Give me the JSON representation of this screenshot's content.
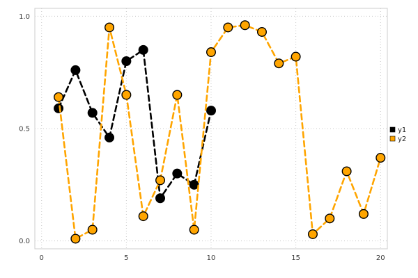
{
  "chart_data": {
    "type": "line",
    "title": "",
    "xlabel": "",
    "ylabel": "",
    "xlim": [
      0,
      20
    ],
    "ylim": [
      0,
      1.0
    ],
    "xticks": [
      "0",
      "5",
      "10",
      "15",
      "20"
    ],
    "xtick_values": [
      0,
      5,
      10,
      15,
      20
    ],
    "yticks": [
      "0.0",
      "0.5",
      "1.0"
    ],
    "ytick_values": [
      0.0,
      0.5,
      1.0
    ],
    "grid": true,
    "grid_style": "dotted",
    "legend_position": "right-outside",
    "series": [
      {
        "name": "y1",
        "color": "#000000",
        "marker": "circle",
        "marker_edge": "#000000",
        "linestyle": "dashed",
        "x": [
          1,
          2,
          3,
          4,
          5,
          6,
          7,
          8,
          9,
          10
        ],
        "y": [
          0.59,
          0.76,
          0.57,
          0.46,
          0.8,
          0.85,
          0.19,
          0.3,
          0.25,
          0.58
        ]
      },
      {
        "name": "y2",
        "color": "#FFA500",
        "marker": "circle",
        "marker_edge": "#000000",
        "linestyle": "dashed",
        "x": [
          1,
          2,
          3,
          4,
          5,
          6,
          7,
          8,
          9,
          10,
          11,
          12,
          13,
          14,
          15,
          16,
          17,
          18,
          19,
          20
        ],
        "y": [
          0.64,
          0.01,
          0.05,
          0.95,
          0.65,
          0.11,
          0.27,
          0.65,
          0.05,
          0.84,
          0.95,
          0.96,
          0.93,
          0.79,
          0.82,
          0.03,
          0.1,
          0.31,
          0.12,
          0.37
        ]
      }
    ],
    "colors": {
      "grid": "#c8c8c8",
      "border": "#cccccc",
      "tick_text": "#3a3a3a"
    }
  }
}
